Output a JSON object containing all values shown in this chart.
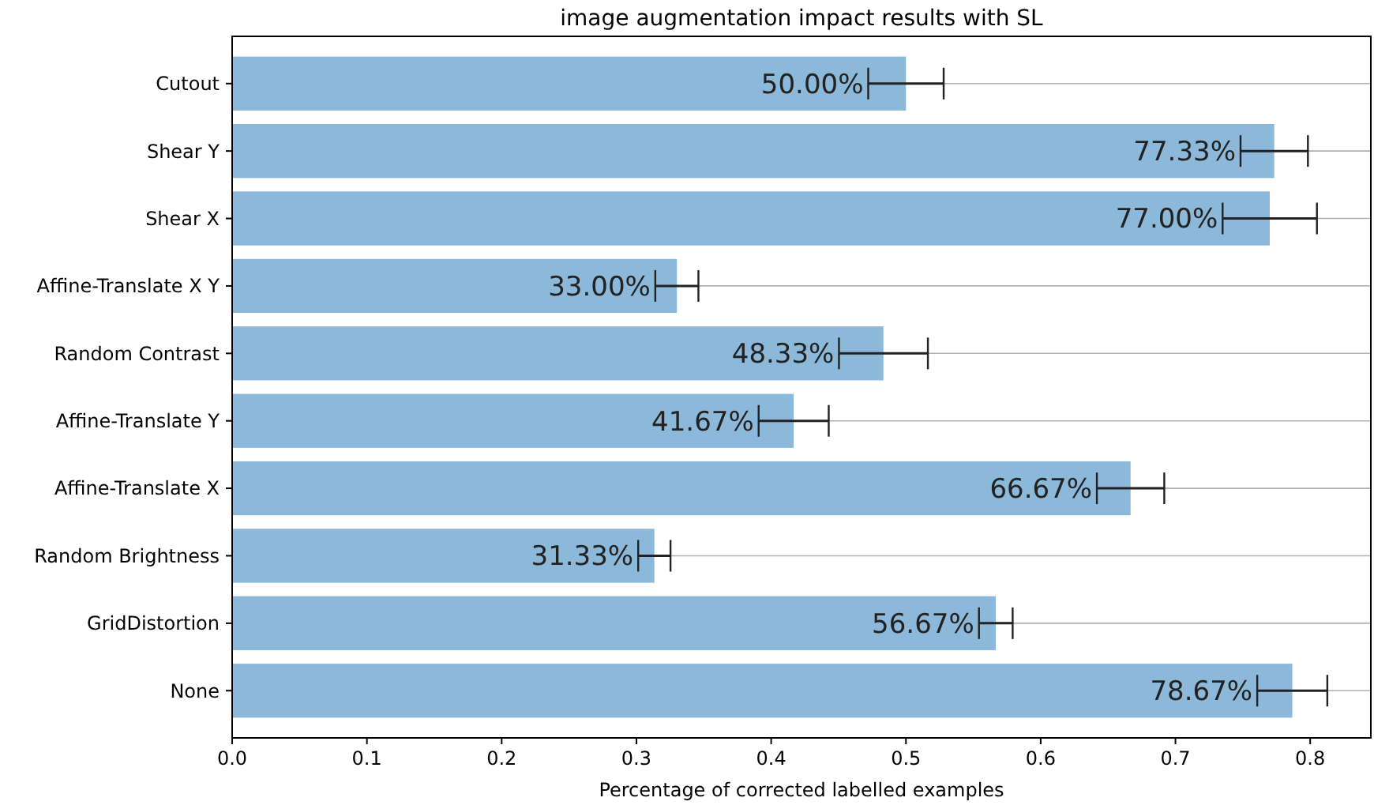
{
  "chart_data": {
    "type": "bar",
    "orientation": "horizontal",
    "title": "image augmentation impact results with SL",
    "xlabel": "Percentage of corrected labelled examples",
    "categories": [
      "Cutout",
      "Shear Y",
      "Shear X",
      "Affine-Translate X Y",
      "Random Contrast",
      "Affine-Translate Y",
      "Affine-Translate X",
      "Random Brightness",
      "GridDistortion",
      "None"
    ],
    "values": [
      0.5,
      0.7733,
      0.77,
      0.33,
      0.4833,
      0.4167,
      0.6667,
      0.3133,
      0.5667,
      0.7867
    ],
    "errors": [
      0.028,
      0.025,
      0.035,
      0.016,
      0.033,
      0.026,
      0.025,
      0.012,
      0.0125,
      0.026
    ],
    "value_labels": [
      "50.00%",
      "77.33%",
      "77.00%",
      "33.00%",
      "48.33%",
      "41.67%",
      "66.67%",
      "31.33%",
      "56.67%",
      "78.67%"
    ],
    "color": "#8cb8d9",
    "xlim": [
      0,
      0.845
    ],
    "xticks": [
      {
        "value": 0,
        "label": "0.0"
      },
      0.1,
      0.2,
      0.3,
      0.4,
      0.5,
      0.6,
      0.7,
      0.8
    ],
    "grid": "y"
  }
}
